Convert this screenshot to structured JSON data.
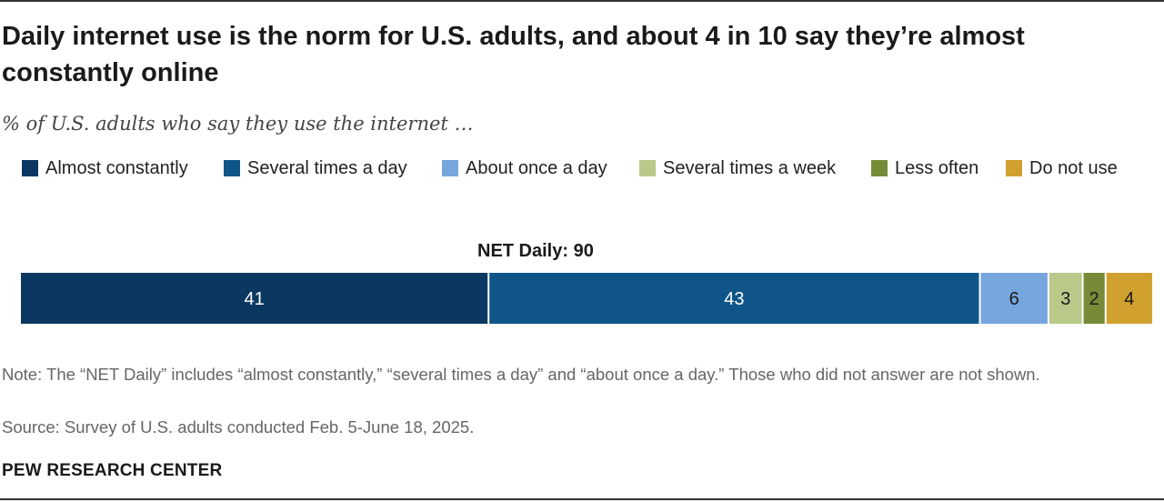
{
  "title": "Daily internet use is the norm for U.S. adults, and about 4 in 10 say they’re almost constantly online",
  "subtitle": "% of U.S. adults who say they use the internet …",
  "net_label": "NET Daily: 90",
  "note": "Note: The “NET Daily” includes “almost constantly,” “several times a day” and “about once a day.” Those who did not answer are not shown.",
  "source": "Source: Survey of U.S. adults conducted Feb. 5-June 18, 2025.",
  "brand": "PEW RESEARCH CENTER",
  "legend": [
    {
      "label": "Almost constantly",
      "color": "#0b3861"
    },
    {
      "label": "Several times a day",
      "color": "#0f5589"
    },
    {
      "label": "About once a day",
      "color": "#77a5dd"
    },
    {
      "label": "Several times a week",
      "color": "#b8c98a"
    },
    {
      "label": "Less often",
      "color": "#778a38"
    },
    {
      "label": "Do not use",
      "color": "#d1a130"
    }
  ],
  "chart_data": {
    "type": "bar",
    "orientation": "horizontal",
    "stacked": true,
    "categories": [
      "U.S. adults"
    ],
    "series": [
      {
        "name": "Almost constantly",
        "values": [
          41
        ],
        "color": "#0b3861",
        "label_color": "#ffffff"
      },
      {
        "name": "Several times a day",
        "values": [
          43
        ],
        "color": "#0f5589",
        "label_color": "#ffffff"
      },
      {
        "name": "About once a day",
        "values": [
          6
        ],
        "color": "#77a5dd",
        "label_color": "#1a1a1a"
      },
      {
        "name": "Several times a week",
        "values": [
          3
        ],
        "color": "#b8c98a",
        "label_color": "#1a1a1a"
      },
      {
        "name": "Less often",
        "values": [
          2
        ],
        "color": "#778a38",
        "label_color": "#1a1a1a"
      },
      {
        "name": "Do not use",
        "values": [
          4
        ],
        "color": "#d1a130",
        "label_color": "#1a1a1a"
      }
    ],
    "net": {
      "label": "NET Daily",
      "value": 90
    },
    "xlim": [
      0,
      99
    ],
    "grid": false,
    "legend_position": "top"
  }
}
